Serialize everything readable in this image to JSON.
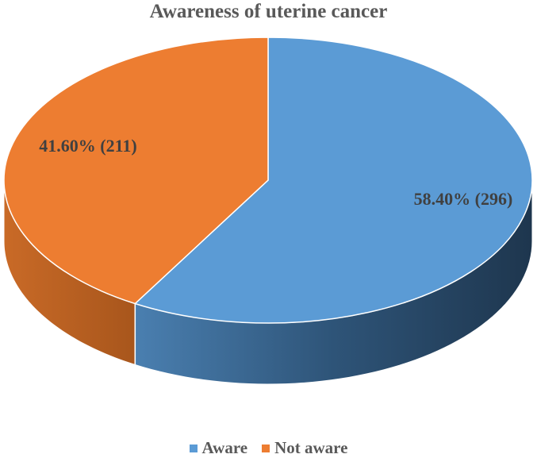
{
  "chart_data": {
    "type": "pie",
    "title": "Awareness of uterine cancer",
    "categories": [
      "Aware",
      "Not aware"
    ],
    "percentages": [
      58.4,
      41.6
    ],
    "counts": [
      296,
      211
    ],
    "data_labels": [
      "58.40% (296)",
      "41.60% (211)"
    ],
    "legend_position": "bottom",
    "colors": [
      "#5b9bd5",
      "#ed7d31"
    ],
    "side_colors": [
      "#203a52",
      "#b35a1f"
    ]
  },
  "legend": [
    {
      "label": "Aware",
      "color": "#5b9bd5"
    },
    {
      "label": "Not aware",
      "color": "#ed7d31"
    }
  ]
}
